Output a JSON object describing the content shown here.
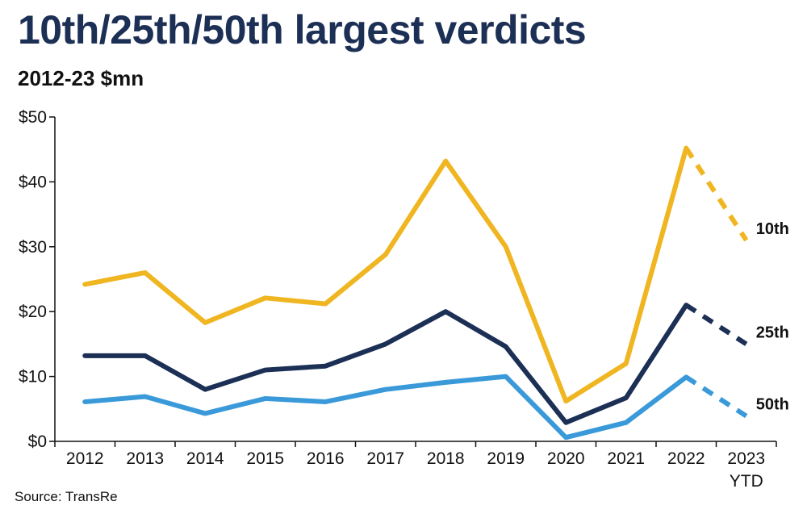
{
  "title": "10th/25th/50th largest verdicts",
  "subtitle": "2012-23 $mn",
  "source": "Source: TransRe",
  "chart_data": {
    "type": "line",
    "x": [
      "2012",
      "2013",
      "2014",
      "2015",
      "2016",
      "2017",
      "2018",
      "2019",
      "2020",
      "2021",
      "2022",
      "2023"
    ],
    "x_tick_labels": [
      "2012",
      "2013",
      "2014",
      "2015",
      "2016",
      "2017",
      "2018",
      "2019",
      "2020",
      "2021",
      "2022",
      "2023"
    ],
    "x_tick_sublabels": [
      "",
      "",
      "",
      "",
      "",
      "",
      "",
      "",
      "",
      "",
      "",
      "YTD"
    ],
    "ylim": [
      0,
      50
    ],
    "y_ticks": [
      0,
      10,
      20,
      30,
      40,
      50
    ],
    "y_tick_labels": [
      "$0",
      "$10",
      "$20",
      "$30",
      "$40",
      "$50"
    ],
    "grid": false,
    "dashed_last_segment": true,
    "series": [
      {
        "name": "10th",
        "color": "#f0b622",
        "values": [
          24.2,
          26.0,
          18.3,
          22.1,
          21.2,
          28.8,
          43.2,
          30.0,
          6.2,
          12.0,
          45.2,
          31.0
        ]
      },
      {
        "name": "25th",
        "color": "#1c2f55",
        "values": [
          13.2,
          13.2,
          8.0,
          11.0,
          11.6,
          15.0,
          20.0,
          14.6,
          2.9,
          6.7,
          21.0,
          15.0
        ]
      },
      {
        "name": "50th",
        "color": "#3a9ad9",
        "values": [
          6.1,
          6.9,
          4.3,
          6.6,
          6.1,
          8.0,
          9.1,
          10.0,
          0.6,
          2.9,
          9.9,
          3.9
        ]
      }
    ]
  }
}
